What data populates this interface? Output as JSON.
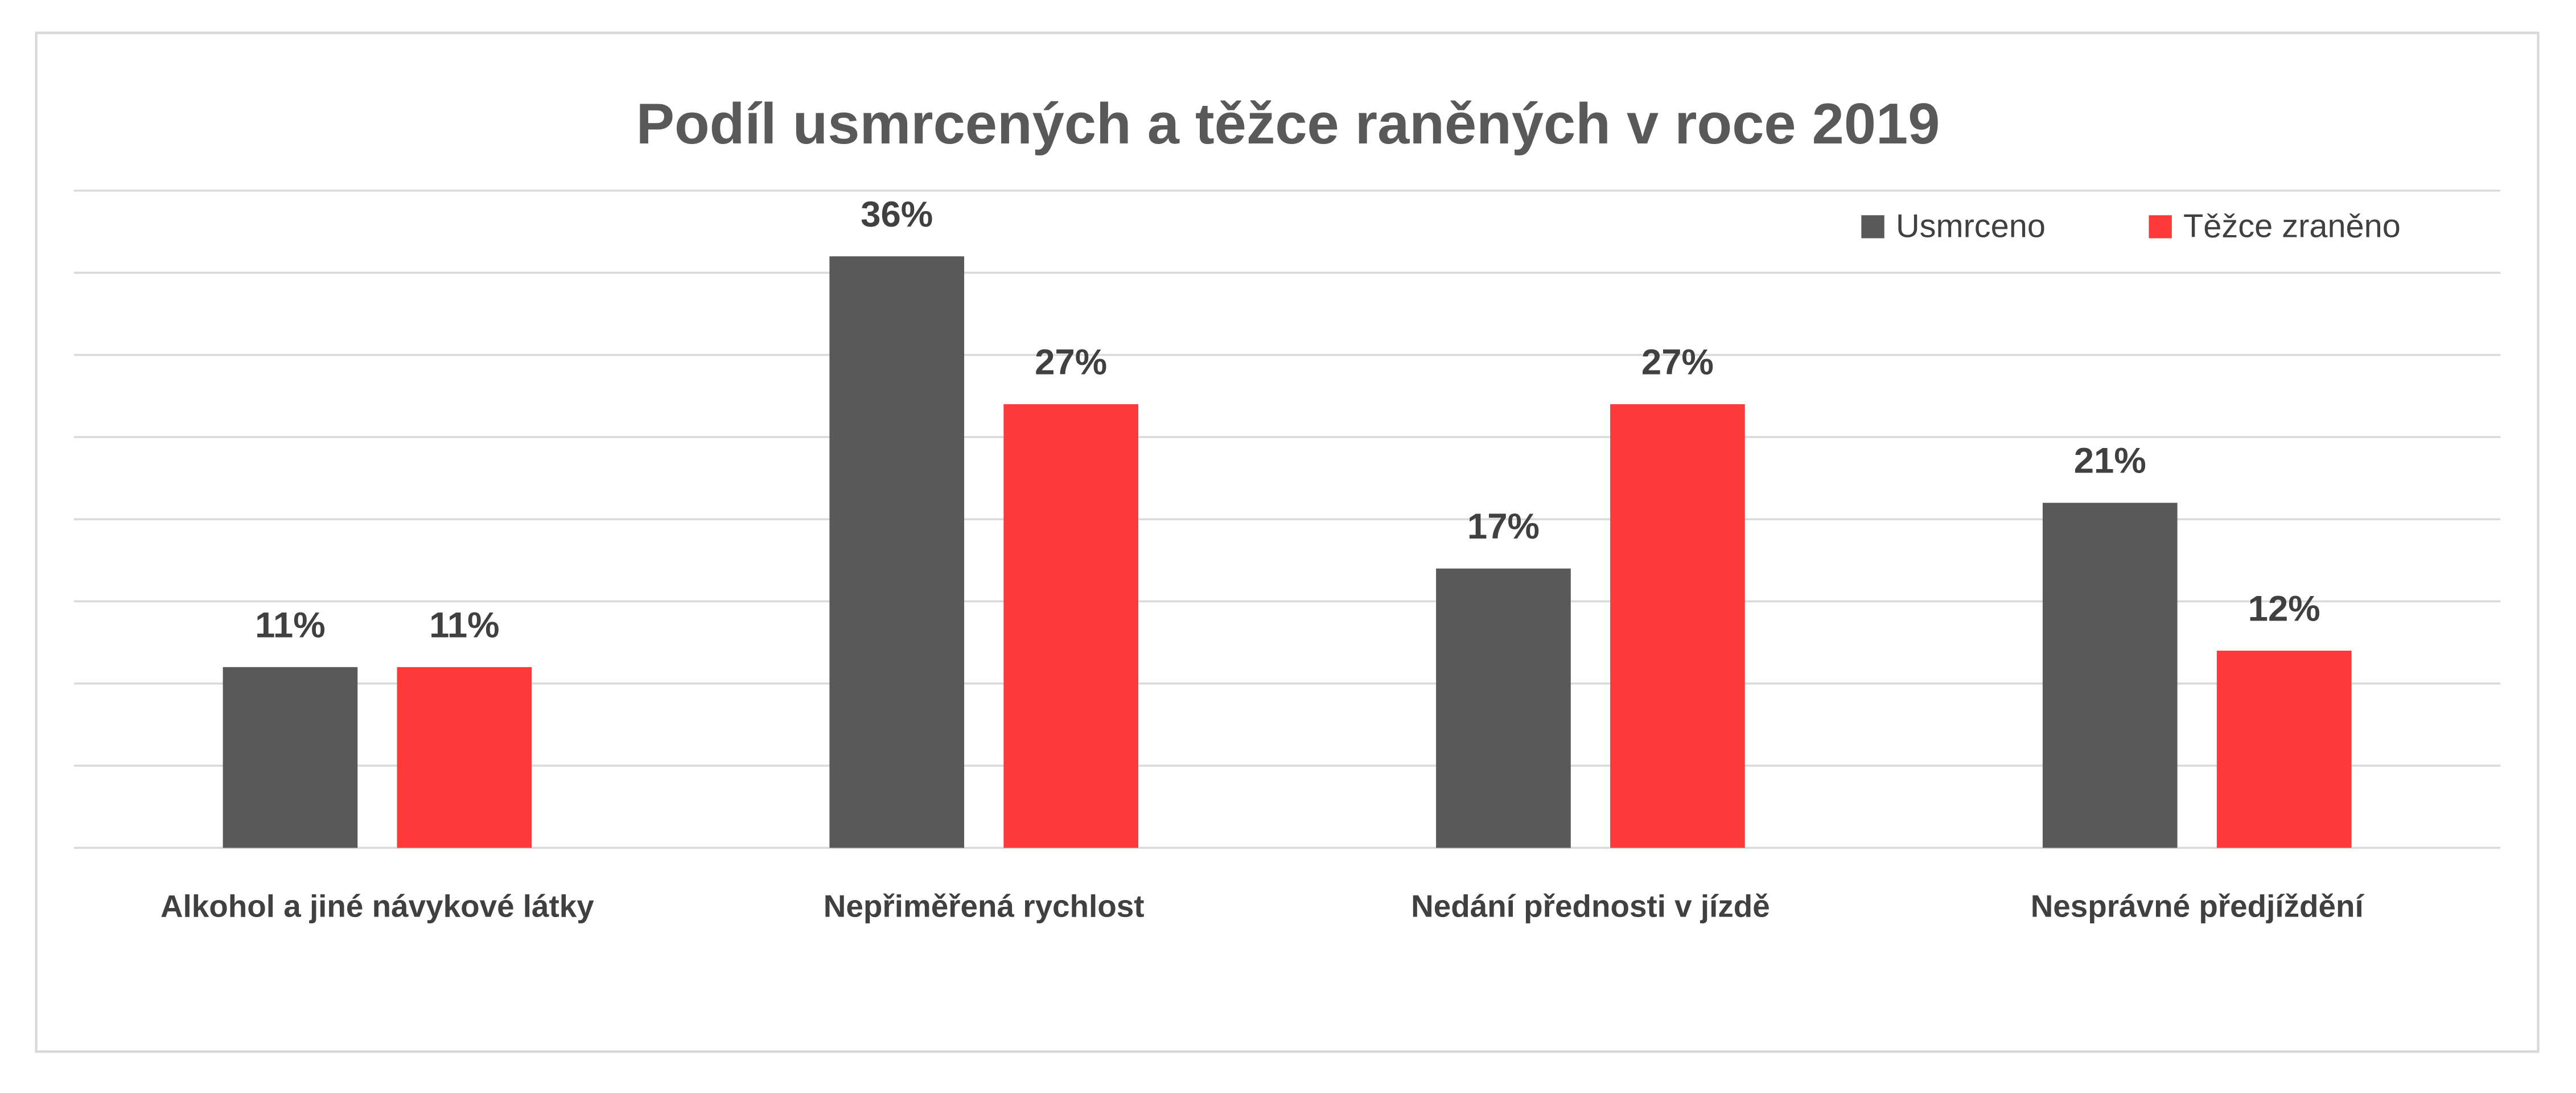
{
  "chart_data": {
    "type": "bar",
    "title": "Podíl usmrcených a těžce raněných v roce 2019",
    "categories": [
      "Alkohol a jiné návykové látky",
      "Nepřiměřená rychlost",
      "Nedání přednosti v jízdě",
      "Nesprávné předjíždění"
    ],
    "series": [
      {
        "name": "Usmrceno",
        "color": "#595959",
        "values": [
          11,
          36,
          17,
          21
        ],
        "value_labels": [
          "11%",
          "36%",
          "17%",
          "21%"
        ]
      },
      {
        "name": "Těžce zraněno",
        "color": "#fd3a3a",
        "values": [
          11,
          27,
          27,
          12
        ],
        "value_labels": [
          "11%",
          "27%",
          "27%",
          "12%"
        ]
      }
    ],
    "ylim": [
      0,
      40
    ],
    "yticks": [
      0,
      5,
      10,
      15,
      20,
      25,
      30,
      35,
      40
    ],
    "grid": true,
    "legend": "upper-right"
  }
}
